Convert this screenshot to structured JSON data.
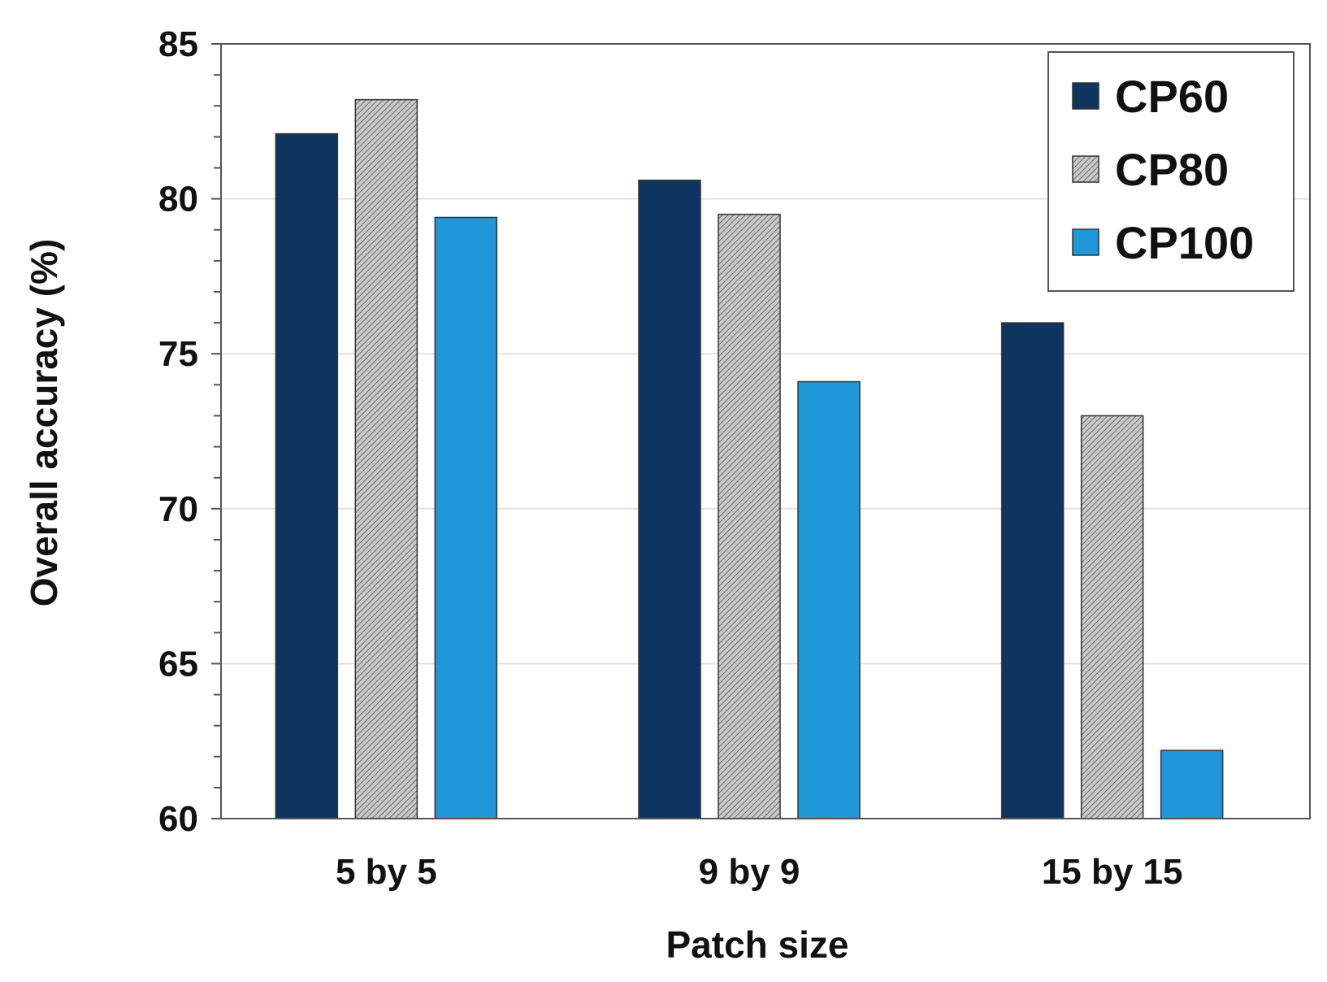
{
  "chart_data": {
    "type": "bar",
    "title": "",
    "xlabel": "Patch size",
    "ylabel": "Overall accuracy (%)",
    "categories": [
      "5 by 5",
      "9 by 9",
      "15 by 15"
    ],
    "ylim": [
      60,
      85
    ],
    "yticks": [
      60,
      65,
      70,
      75,
      80,
      85
    ],
    "minor_tick_step": 1,
    "grid": true,
    "legend_position": "top-right",
    "series": [
      {
        "name": "CP60",
        "values": [
          82.1,
          80.6,
          76.0
        ],
        "color": "#0e3560",
        "pattern": "solid"
      },
      {
        "name": "CP80",
        "values": [
          83.2,
          79.5,
          73.0
        ],
        "color": "#b0b0b0",
        "pattern": "hatched"
      },
      {
        "name": "CP100",
        "values": [
          79.4,
          74.1,
          62.2
        ],
        "color": "#1f97d9",
        "pattern": "solid"
      }
    ]
  }
}
